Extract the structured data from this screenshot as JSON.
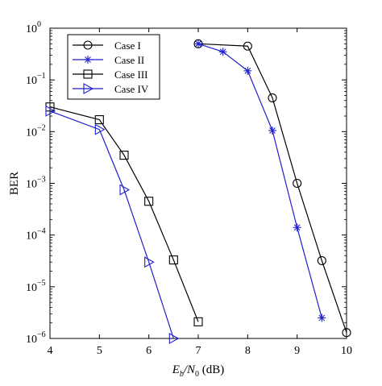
{
  "chart_data": {
    "type": "line",
    "xlabel_parts": [
      "E",
      "b",
      "/N",
      "0",
      " (dB)"
    ],
    "ylabel": "BER",
    "xlim": [
      4,
      10
    ],
    "ylim": [
      1e-06,
      1
    ],
    "yscale": "log",
    "xticks": [
      4,
      5,
      6,
      7,
      8,
      9,
      10
    ],
    "yticks": [
      {
        "value": 1e-06,
        "base": "10",
        "exp": "−6"
      },
      {
        "value": 1e-05,
        "base": "10",
        "exp": "−5"
      },
      {
        "value": 0.0001,
        "base": "10",
        "exp": "−4"
      },
      {
        "value": 0.001,
        "base": "10",
        "exp": "−3"
      },
      {
        "value": 0.01,
        "base": "10",
        "exp": "−2"
      },
      {
        "value": 0.1,
        "base": "10",
        "exp": "−1"
      },
      {
        "value": 1,
        "base": "10",
        "exp": "0"
      }
    ],
    "grid": false,
    "legend_position": "top-left",
    "series": [
      {
        "name": "Case I",
        "color": "#000000",
        "marker": "circle",
        "x": [
          7,
          8,
          8.5,
          9,
          9.5,
          10
        ],
        "y": [
          0.5,
          0.45,
          0.045,
          0.001,
          3.2e-05,
          1.3e-06
        ]
      },
      {
        "name": "Case II",
        "color": "#1f1fcf",
        "marker": "star",
        "x": [
          7,
          7.5,
          8,
          8.5,
          9,
          9.5
        ],
        "y": [
          0.5,
          0.35,
          0.15,
          0.0105,
          0.00014,
          2.5e-06
        ]
      },
      {
        "name": "Case III",
        "color": "#000000",
        "marker": "square",
        "x": [
          4,
          5,
          5.5,
          6,
          6.5,
          7
        ],
        "y": [
          0.03,
          0.017,
          0.0035,
          0.00045,
          3.3e-05,
          2.1e-06
        ]
      },
      {
        "name": "Case IV",
        "color": "#1f1fcf",
        "marker": "triangle-right",
        "x": [
          4,
          5,
          5.5,
          6,
          6.5
        ],
        "y": [
          0.025,
          0.011,
          0.00075,
          3e-05,
          1e-06
        ]
      }
    ]
  }
}
